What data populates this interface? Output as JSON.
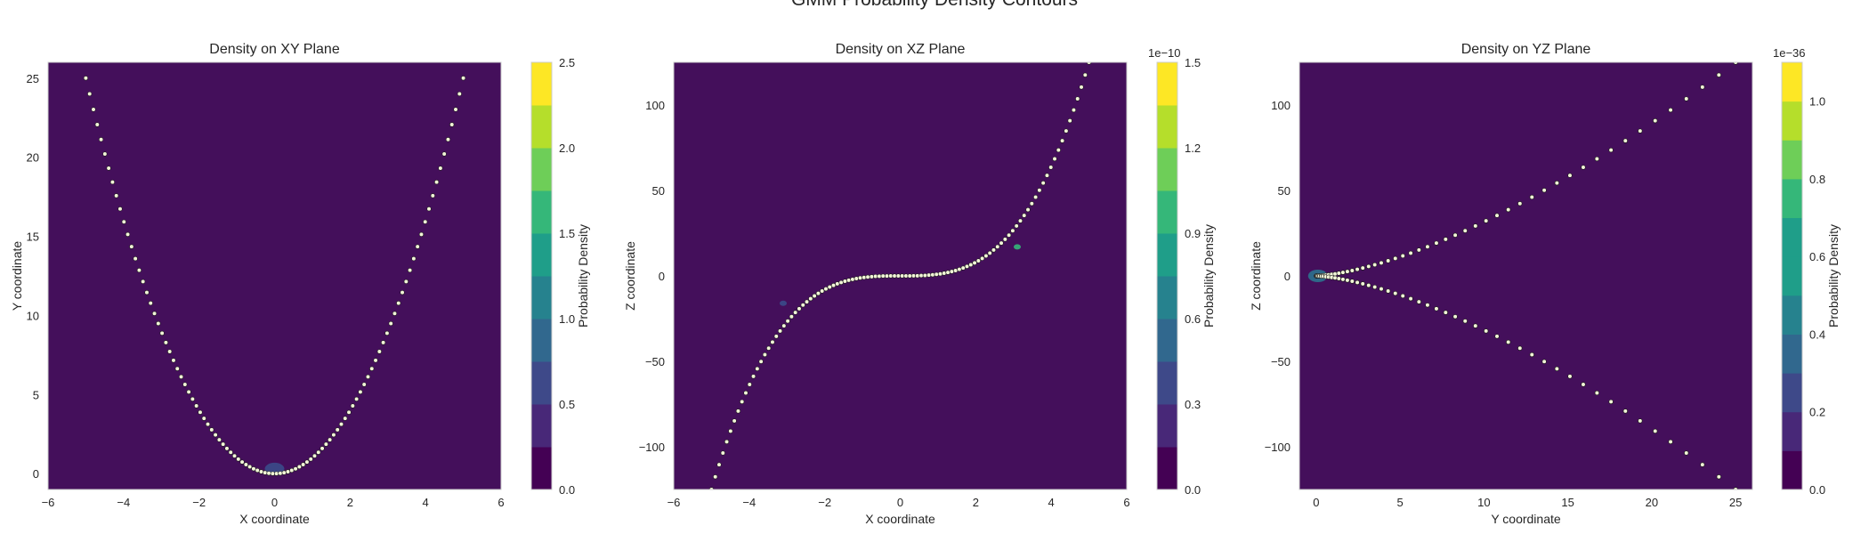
{
  "figure": {
    "suptitle": "GMM Probability Density Contours"
  },
  "chart_data": [
    {
      "type": "heatmap",
      "title": "Density on XY Plane",
      "xlabel": "X coordinate",
      "ylabel": "Y coordinate",
      "xlim": [
        -6,
        6
      ],
      "ylim": [
        -1,
        26
      ],
      "xticks": [
        -6,
        -4,
        -2,
        0,
        2,
        4,
        6
      ],
      "yticks": [
        0,
        5,
        10,
        15,
        20,
        25
      ],
      "background_color": "#440f5b",
      "blobs": [
        {
          "x": 0.0,
          "y": 0.3,
          "color": "#3b4b8a"
        }
      ],
      "points": {
        "curve": "y = x^2",
        "x_range": [
          -5,
          5
        ],
        "count": 100,
        "color": "#f2f5d8"
      },
      "colorbar": {
        "label": "Probability Density",
        "offset_text": "",
        "ticks": [
          "0.0",
          "0.5",
          "1.0",
          "1.5",
          "2.0",
          "2.5"
        ],
        "levels": 10,
        "min": 0,
        "max": 2.5
      },
      "grid": false
    },
    {
      "type": "heatmap",
      "title": "Density on XZ Plane",
      "xlabel": "X coordinate",
      "ylabel": "Z coordinate",
      "xlim": [
        -6,
        6
      ],
      "ylim": [
        -125,
        125
      ],
      "xticks": [
        -6,
        -4,
        -2,
        0,
        2,
        4,
        6
      ],
      "yticks": [
        -100,
        -50,
        0,
        50,
        100
      ],
      "background_color": "#440f5b",
      "blobs": [
        {
          "x": -3.1,
          "y": -16,
          "color": "#3b4b8a"
        },
        {
          "x": 3.1,
          "y": 17,
          "color": "#35b779"
        }
      ],
      "points": {
        "curve": "z = x^3",
        "x_range": [
          -5,
          5
        ],
        "count": 100,
        "color": "#f2f5d8"
      },
      "colorbar": {
        "label": "Probability Density",
        "offset_text": "1e−10",
        "ticks": [
          "0.0",
          "0.3",
          "0.6",
          "0.9",
          "1.2",
          "1.5"
        ],
        "levels": 10,
        "min": 0,
        "max": 1.5
      },
      "grid": false
    },
    {
      "type": "heatmap",
      "title": "Density on YZ Plane",
      "xlabel": "Y coordinate",
      "ylabel": "Z coordinate",
      "xlim": [
        -1,
        26
      ],
      "ylim": [
        -125,
        125
      ],
      "xticks": [
        0,
        5,
        10,
        15,
        20,
        25
      ],
      "yticks": [
        -100,
        -50,
        0,
        50,
        100
      ],
      "background_color": "#440f5b",
      "blobs": [
        {
          "x": 0.1,
          "y": 0,
          "color": "#2c728e"
        }
      ],
      "points": {
        "curve": "z = ±y^1.5",
        "x_range": [
          -5,
          5
        ],
        "count": 100,
        "color": "#f2f5d8"
      },
      "colorbar": {
        "label": "Probability Density",
        "offset_text": "1e−36",
        "ticks": [
          "0.0",
          "0.2",
          "0.4",
          "0.6",
          "0.8",
          "1.0"
        ],
        "levels": 11,
        "min": 0,
        "max": 1.1
      },
      "grid": false
    }
  ],
  "colormap": [
    "#440154",
    "#482878",
    "#3e4989",
    "#31688e",
    "#26828e",
    "#1f9e89",
    "#35b779",
    "#6ece58",
    "#b5de2b",
    "#fde725"
  ]
}
